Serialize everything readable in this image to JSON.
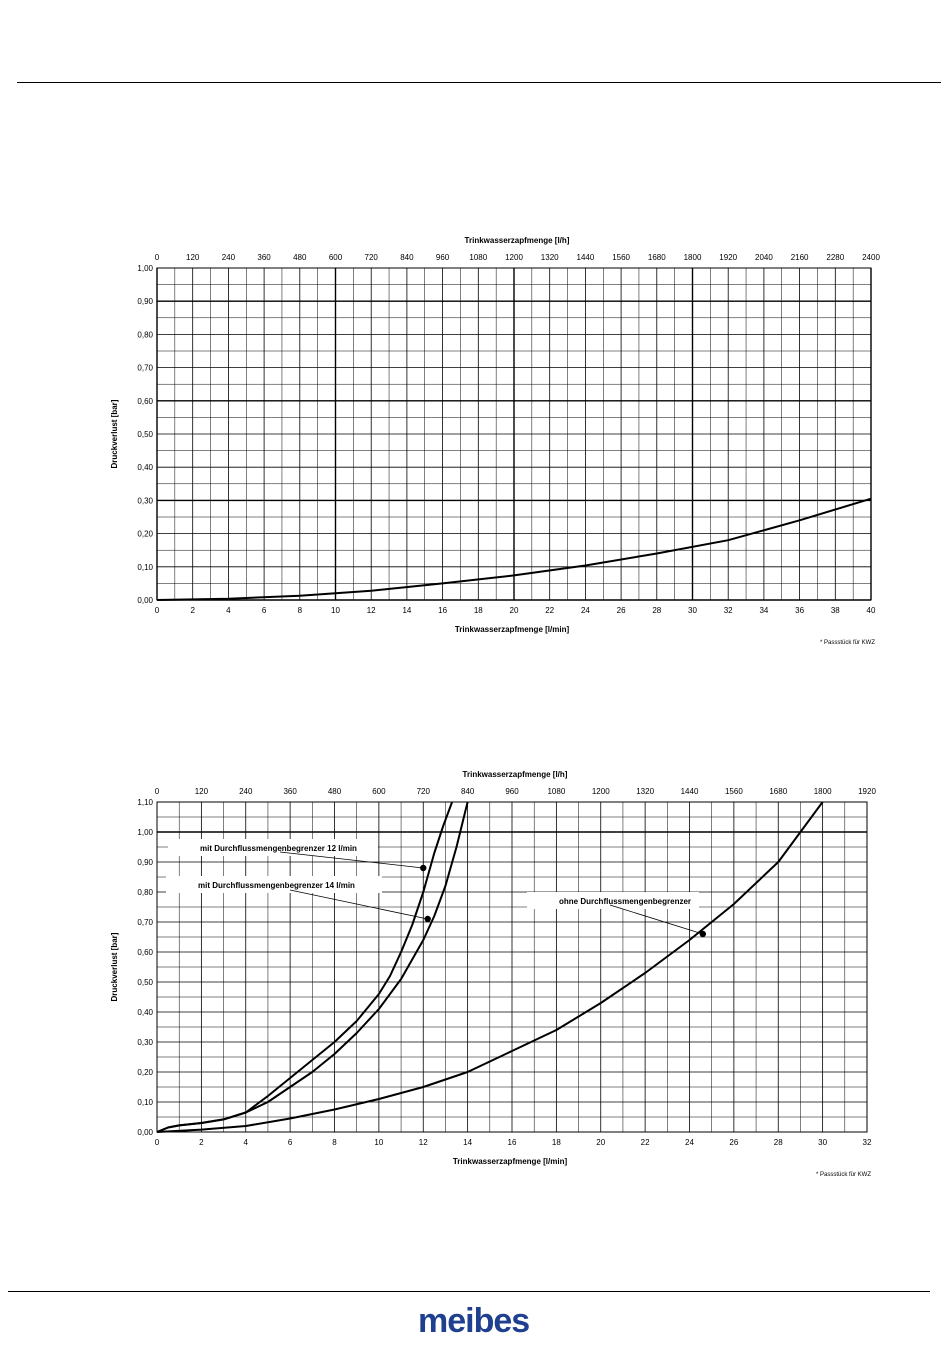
{
  "charts": [
    {
      "type": "line",
      "x_top_label": "Trinkwasserzapfmenge  [l/h]",
      "x_bottom_label": "Trinkwasserzapfmenge  [l/min]",
      "ylabel": "Druckverlust  [bar]",
      "footnote": "* Passstück für KWZ",
      "x_ticks_bottom": [
        "0",
        "2",
        "4",
        "6",
        "8",
        "10",
        "12",
        "14",
        "16",
        "18",
        "20",
        "22",
        "24",
        "26",
        "28",
        "30",
        "32",
        "34",
        "36",
        "38",
        "40"
      ],
      "x_ticks_top": [
        "0",
        "120",
        "240",
        "360",
        "480",
        "600",
        "720",
        "840",
        "960",
        "1080",
        "1200",
        "1320",
        "1440",
        "1560",
        "1680",
        "1800",
        "1920",
        "2040",
        "2160",
        "2280",
        "2400"
      ],
      "y_ticks": [
        "0,00",
        "0,10",
        "0,20",
        "0,30",
        "0,40",
        "0,50",
        "0,60",
        "0,70",
        "0,80",
        "0,90",
        "1,00"
      ],
      "xlim": [
        0,
        40
      ],
      "ylim": [
        0,
        1.0
      ],
      "grid": true,
      "series": [
        {
          "name": "",
          "x": [
            0,
            4,
            8,
            12,
            16,
            20,
            24,
            28,
            32,
            36,
            40
          ],
          "y": [
            0,
            0.004,
            0.013,
            0.028,
            0.05,
            0.074,
            0.104,
            0.14,
            0.18,
            0.24,
            0.305
          ]
        }
      ],
      "annotations": []
    },
    {
      "type": "line",
      "x_top_label": "Trinkwasserzapfmenge  [l/h]",
      "x_bottom_label": "Trinkwasserzapfmenge  [l/min]",
      "ylabel": "Druckverlust  [bar]",
      "footnote": "* Passstück für KWZ",
      "x_ticks_bottom": [
        "0",
        "2",
        "4",
        "6",
        "8",
        "10",
        "12",
        "14",
        "16",
        "18",
        "20",
        "22",
        "24",
        "26",
        "28",
        "30",
        "32"
      ],
      "x_ticks_top": [
        "0",
        "120",
        "240",
        "360",
        "480",
        "600",
        "720",
        "840",
        "960",
        "1080",
        "1200",
        "1320",
        "1440",
        "1560",
        "1680",
        "1800",
        "1920"
      ],
      "y_ticks": [
        "0,00",
        "0,10",
        "0,20",
        "0,30",
        "0,40",
        "0,50",
        "0,60",
        "0,70",
        "0,80",
        "0,90",
        "1,00",
        "1,10"
      ],
      "xlim": [
        0,
        32
      ],
      "ylim": [
        0,
        1.1
      ],
      "grid": true,
      "series": [
        {
          "name": "mit Durchflussmengenbegrenzer  12 l/min",
          "x": [
            0,
            0.5,
            1,
            2,
            3,
            4,
            5,
            6,
            7,
            8,
            9,
            10,
            10.5,
            11,
            11.5,
            12,
            12.5,
            12.9,
            13.3
          ],
          "y": [
            0,
            0.015,
            0.022,
            0.03,
            0.042,
            0.065,
            0.12,
            0.18,
            0.24,
            0.3,
            0.37,
            0.46,
            0.52,
            0.6,
            0.69,
            0.8,
            0.93,
            1.02,
            1.1
          ]
        },
        {
          "name": "mit Durchflussmengenbegrenzer  14 l/min",
          "x": [
            0,
            0.5,
            1,
            2,
            3,
            4,
            5,
            6,
            7,
            8,
            9,
            10,
            11,
            12,
            12.5,
            13,
            13.5,
            14
          ],
          "y": [
            0,
            0.015,
            0.022,
            0.03,
            0.042,
            0.065,
            0.1,
            0.15,
            0.2,
            0.26,
            0.33,
            0.41,
            0.51,
            0.64,
            0.72,
            0.82,
            0.95,
            1.1
          ]
        },
        {
          "name": "ohne Durchflussmengenbegrenzer",
          "x": [
            0,
            2,
            4,
            6,
            8,
            10,
            12,
            14,
            16,
            18,
            20,
            22,
            24,
            26,
            28,
            30
          ],
          "y": [
            0,
            0.008,
            0.02,
            0.045,
            0.075,
            0.11,
            0.15,
            0.2,
            0.27,
            0.34,
            0.43,
            0.53,
            0.64,
            0.76,
            0.9,
            1.1
          ]
        }
      ],
      "markers": [
        {
          "x": 12.0,
          "y": 0.88
        },
        {
          "x": 12.2,
          "y": 0.71
        },
        {
          "x": 24.6,
          "y": 0.66
        }
      ],
      "annotations": [
        {
          "text": "mit Durchflussmengenbegrenzer  12 l/min",
          "target": 0
        },
        {
          "text": "mit Durchflussmengenbegrenzer  14 l/min",
          "target": 1
        },
        {
          "text": "ohne Durchflussmengenbegrenzer",
          "target": 2
        }
      ]
    }
  ],
  "footer": {
    "logo_text": "meibes",
    "logo_color": "#1f3f8f"
  }
}
